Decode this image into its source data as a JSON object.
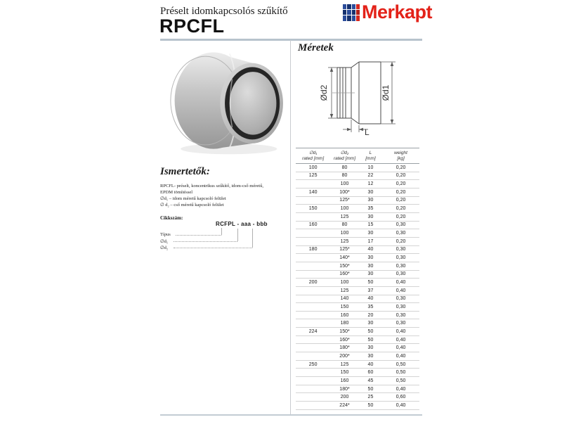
{
  "header": {
    "subtitle": "Préselt idomkapcsolós szűkítő",
    "title": "RPCFL",
    "brand": "Merkapt"
  },
  "left_panel": {
    "heading": "Ismertetők:",
    "description": [
      "RPCFL- préselt, koncentrikus szűkítő, idom-cső méretű,",
      "EPDM tömítéssel",
      "∅d₁  –  idom méretű kapcsoló felület",
      "∅ d₂ –  cső méretű kapcsoló felület"
    ],
    "article_label": "Cikkszám:",
    "article_code": "RCFPL - aaa - bbb",
    "legend": [
      {
        "label": "Típus"
      },
      {
        "label": "∅d₁"
      },
      {
        "label": "∅d₂"
      }
    ]
  },
  "right_panel": {
    "heading": "Méretek",
    "diagram": {
      "d2_label": "Ød2",
      "d1_label": "Ød1",
      "l_label": "L"
    },
    "table": {
      "headers": [
        {
          "line1": "∅d₁",
          "line2": "rated [mm]"
        },
        {
          "line1": "∅d₂",
          "line2": "rated [mm]"
        },
        {
          "line1": "L",
          "line2": "[mm]"
        },
        {
          "line1": "weight",
          "line2": "[kg]"
        }
      ],
      "rows": [
        [
          "100",
          "80",
          "10",
          "0,20"
        ],
        [
          "125",
          "80",
          "22",
          "0,20"
        ],
        [
          "",
          "100",
          "12",
          "0,20"
        ],
        [
          "140",
          "100*",
          "30",
          "0,20"
        ],
        [
          "",
          "125*",
          "30",
          "0,20"
        ],
        [
          "150",
          "100",
          "35",
          "0,20"
        ],
        [
          "",
          "125",
          "30",
          "0,20"
        ],
        [
          "160",
          "80",
          "15",
          "0,30"
        ],
        [
          "",
          "100",
          "30",
          "0,30"
        ],
        [
          "",
          "125",
          "17",
          "0,20"
        ],
        [
          "180",
          "125*",
          "40",
          "0,30"
        ],
        [
          "",
          "140*",
          "30",
          "0,30"
        ],
        [
          "",
          "150*",
          "30",
          "0,30"
        ],
        [
          "",
          "160*",
          "30",
          "0,30"
        ],
        [
          "200",
          "100",
          "50",
          "0,40"
        ],
        [
          "",
          "125",
          "37",
          "0,40"
        ],
        [
          "",
          "140",
          "40",
          "0,30"
        ],
        [
          "",
          "150",
          "35",
          "0,30"
        ],
        [
          "",
          "160",
          "20",
          "0,30"
        ],
        [
          "",
          "180",
          "30",
          "0,30"
        ],
        [
          "224",
          "150*",
          "50",
          "0,40"
        ],
        [
          "",
          "160*",
          "50",
          "0,40"
        ],
        [
          "",
          "180*",
          "30",
          "0,40"
        ],
        [
          "",
          "200*",
          "30",
          "0,40"
        ],
        [
          "250",
          "125",
          "40",
          "0,50"
        ],
        [
          "",
          "150",
          "60",
          "0,50"
        ],
        [
          "",
          "160",
          "45",
          "0,50"
        ],
        [
          "",
          "180*",
          "50",
          "0,40"
        ],
        [
          "",
          "200",
          "25",
          "0,60"
        ],
        [
          "",
          "224*",
          "50",
          "0,40"
        ]
      ]
    }
  },
  "colors": {
    "brand_red": "#e32219",
    "brand_navy": "#16316e",
    "rule_line": "#b7c3cd",
    "table_line": "#9aa0a5"
  }
}
